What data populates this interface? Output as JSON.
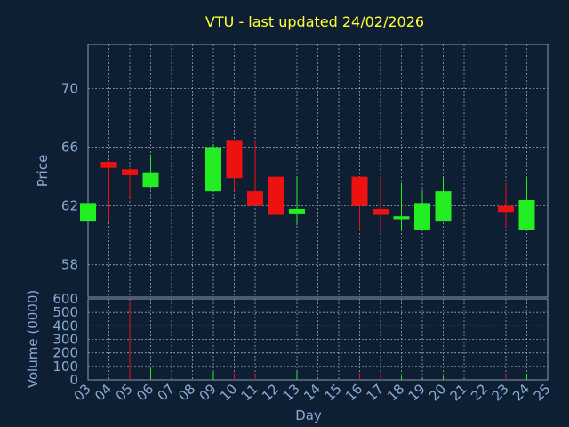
{
  "chart_data": {
    "type": "candlestick",
    "title": "VTU - last updated 24/02/2026",
    "xlabel": "Day",
    "ylabel": "Price",
    "volume_label": "Volume (0000)",
    "x_ticks": [
      "03",
      "04",
      "05",
      "06",
      "07",
      "08",
      "09",
      "10",
      "11",
      "12",
      "13",
      "14",
      "15",
      "16",
      "17",
      "18",
      "19",
      "20",
      "21",
      "22",
      "23",
      "24",
      "25"
    ],
    "price_ticks": [
      58,
      62,
      66,
      70
    ],
    "price_ylim": [
      55.8,
      73.0
    ],
    "volume_ticks": [
      0,
      100,
      200,
      300,
      400,
      500,
      600
    ],
    "volume_ylim": [
      0,
      600
    ],
    "grid": true,
    "colors": {
      "up": "#22ee22",
      "down": "#ee1111",
      "background": "#0f1f33",
      "title": "#ffff33",
      "axis": "#8aaad6"
    },
    "series": [
      {
        "day": 3,
        "open": 61.0,
        "close": 62.2,
        "high": 62.2,
        "low": 61.0,
        "volume": 0
      },
      {
        "day": 4,
        "open": 65.0,
        "close": 64.6,
        "high": 65.1,
        "low": 60.9,
        "volume": 0
      },
      {
        "day": 5,
        "open": 64.5,
        "close": 64.1,
        "high": 64.6,
        "low": 62.5,
        "volume": 575
      },
      {
        "day": 6,
        "open": 63.3,
        "close": 64.3,
        "high": 65.5,
        "low": 63.3,
        "volume": 85
      },
      {
        "day": 9,
        "open": 63.0,
        "close": 66.0,
        "high": 66.2,
        "low": 63.0,
        "volume": 60
      },
      {
        "day": 10,
        "open": 66.5,
        "close": 63.9,
        "high": 66.5,
        "low": 63.0,
        "volume": 50
      },
      {
        "day": 11,
        "open": 63.0,
        "close": 62.0,
        "high": 66.5,
        "low": 62.0,
        "volume": 40
      },
      {
        "day": 12,
        "open": 64.0,
        "close": 61.4,
        "high": 64.0,
        "low": 61.4,
        "volume": 45
      },
      {
        "day": 13,
        "open": 61.5,
        "close": 61.8,
        "high": 64.0,
        "low": 60.7,
        "volume": 75
      },
      {
        "day": 16,
        "open": 64.0,
        "close": 62.0,
        "high": 64.0,
        "low": 60.3,
        "volume": 50
      },
      {
        "day": 17,
        "open": 61.8,
        "close": 61.4,
        "high": 64.0,
        "low": 60.4,
        "volume": 50
      },
      {
        "day": 18,
        "open": 61.1,
        "close": 61.3,
        "high": 63.6,
        "low": 60.3,
        "volume": 30
      },
      {
        "day": 19,
        "open": 60.4,
        "close": 62.2,
        "high": 63.1,
        "low": 60.4,
        "volume": 20
      },
      {
        "day": 20,
        "open": 61.0,
        "close": 63.0,
        "high": 64.0,
        "low": 61.0,
        "volume": 30
      },
      {
        "day": 23,
        "open": 62.0,
        "close": 61.6,
        "high": 63.6,
        "low": 60.5,
        "volume": 40
      },
      {
        "day": 24,
        "open": 60.4,
        "close": 62.4,
        "high": 63.9,
        "low": 60.4,
        "volume": 45
      }
    ]
  }
}
